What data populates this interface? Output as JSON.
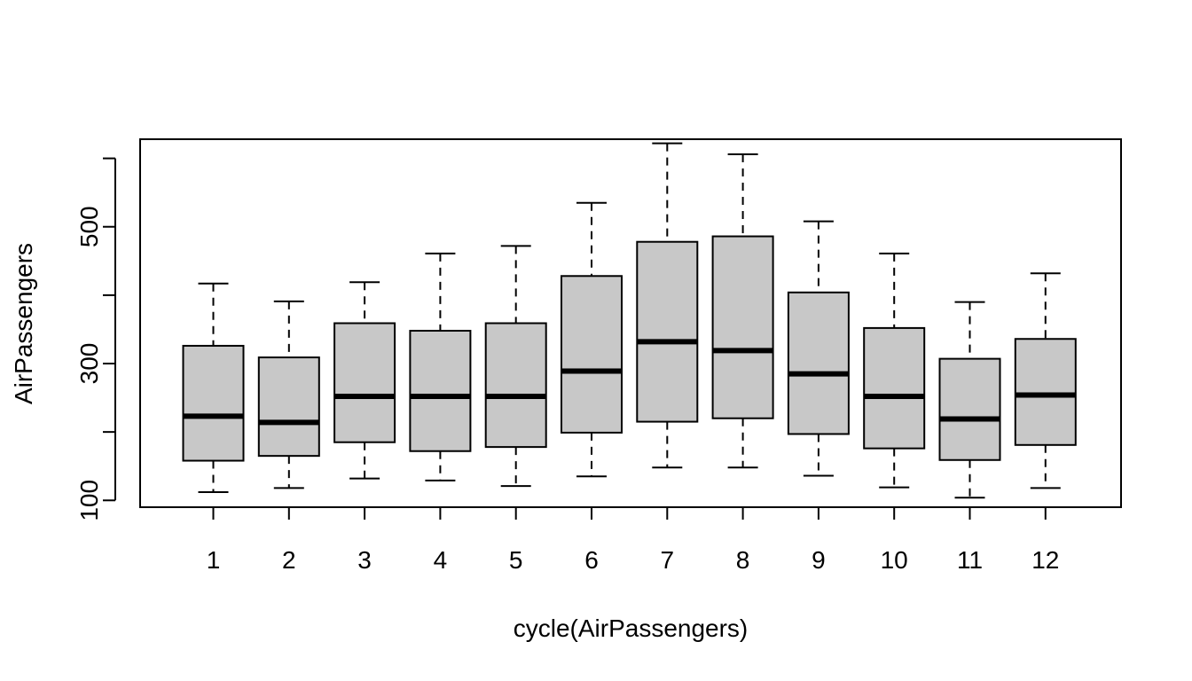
{
  "chart_data": {
    "type": "boxplot",
    "xlabel": "cycle(AirPassengers)",
    "ylabel": "AirPassengers",
    "ylim": [
      90,
      628
    ],
    "y_ticks": [
      100,
      200,
      300,
      400,
      500,
      600
    ],
    "y_tick_labels": [
      "100",
      "",
      "300",
      "",
      "500",
      ""
    ],
    "fill_color": "#c8c8c8",
    "line_color": "#000000",
    "categories": [
      "1",
      "2",
      "3",
      "4",
      "5",
      "6",
      "7",
      "8",
      "9",
      "10",
      "11",
      "12"
    ],
    "boxes": [
      {
        "min": 112,
        "q1": 158,
        "median": 223,
        "q3": 326,
        "max": 417
      },
      {
        "min": 118,
        "q1": 165,
        "median": 214,
        "q3": 309,
        "max": 391
      },
      {
        "min": 132,
        "q1": 185,
        "median": 252,
        "q3": 359,
        "max": 419
      },
      {
        "min": 129,
        "q1": 172,
        "median": 252,
        "q3": 348,
        "max": 461
      },
      {
        "min": 121,
        "q1": 178,
        "median": 252,
        "q3": 359,
        "max": 472
      },
      {
        "min": 135,
        "q1": 199,
        "median": 289,
        "q3": 428,
        "max": 535
      },
      {
        "min": 148,
        "q1": 215,
        "median": 332,
        "q3": 478,
        "max": 622
      },
      {
        "min": 148,
        "q1": 220,
        "median": 319,
        "q3": 486,
        "max": 606
      },
      {
        "min": 136,
        "q1": 197,
        "median": 285,
        "q3": 404,
        "max": 508
      },
      {
        "min": 119,
        "q1": 176,
        "median": 252,
        "q3": 352,
        "max": 461
      },
      {
        "min": 104,
        "q1": 159,
        "median": 219,
        "q3": 307,
        "max": 390
      },
      {
        "min": 118,
        "q1": 181,
        "median": 254,
        "q3": 336,
        "max": 432
      }
    ]
  }
}
